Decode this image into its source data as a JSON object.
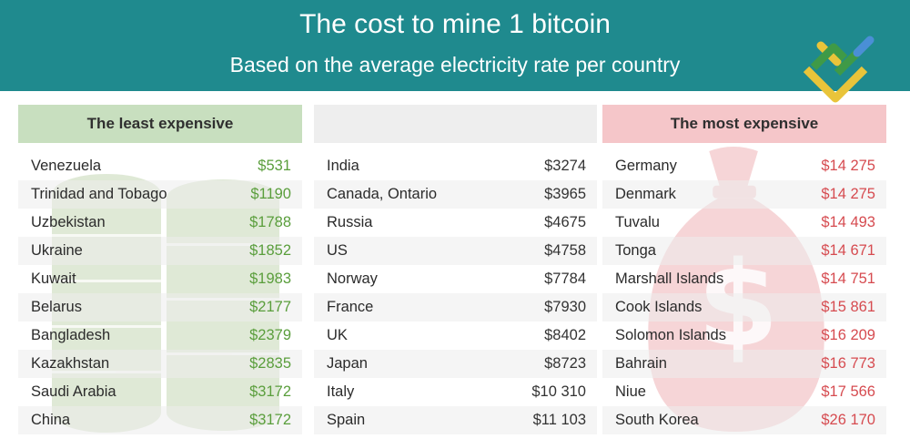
{
  "header": {
    "title": "The cost to mine 1 bitcoin",
    "subtitle": "Based on the average electricity rate per country"
  },
  "colors": {
    "banner": "#1f8a8e",
    "least": "#5a9e3c",
    "most": "#d64b50"
  },
  "chart_data": {
    "type": "table",
    "title": "The cost to mine 1 bitcoin",
    "subtitle": "Based on the average electricity rate per country",
    "columns": [
      {
        "heading": "The least expensive",
        "rows": [
          {
            "country": "Venezuela",
            "cost": "$531"
          },
          {
            "country": "Trinidad and Tobago",
            "cost": "$1190"
          },
          {
            "country": "Uzbekistan",
            "cost": "$1788"
          },
          {
            "country": "Ukraine",
            "cost": "$1852"
          },
          {
            "country": "Kuwait",
            "cost": "$1983"
          },
          {
            "country": "Belarus",
            "cost": "$2177"
          },
          {
            "country": "Bangladesh",
            "cost": "$2379"
          },
          {
            "country": "Kazakhstan",
            "cost": "$2835"
          },
          {
            "country": "Saudi Arabia",
            "cost": "$3172"
          },
          {
            "country": "China",
            "cost": "$3172"
          }
        ]
      },
      {
        "heading": "",
        "rows": [
          {
            "country": "India",
            "cost": "$3274"
          },
          {
            "country": "Canada, Ontario",
            "cost": "$3965"
          },
          {
            "country": "Russia",
            "cost": "$4675"
          },
          {
            "country": "US",
            "cost": "$4758"
          },
          {
            "country": "Norway",
            "cost": "$7784"
          },
          {
            "country": "France",
            "cost": "$7930"
          },
          {
            "country": "UK",
            "cost": "$8402"
          },
          {
            "country": "Japan",
            "cost": "$8723"
          },
          {
            "country": "Italy",
            "cost": "$10 310"
          },
          {
            "country": "Spain",
            "cost": "$11 103"
          }
        ]
      },
      {
        "heading": "The most expensive",
        "rows": [
          {
            "country": "Germany",
            "cost": "$14 275"
          },
          {
            "country": "Denmark",
            "cost": "$14 275"
          },
          {
            "country": "Tuvalu",
            "cost": "$14 493"
          },
          {
            "country": "Tonga",
            "cost": "$14 671"
          },
          {
            "country": "Marshall Islands",
            "cost": "$14 751"
          },
          {
            "country": "Cook Islands",
            "cost": "$15 861"
          },
          {
            "country": "Solomon Islands",
            "cost": "$16 209"
          },
          {
            "country": "Bahrain",
            "cost": "$16 773"
          },
          {
            "country": "Niue",
            "cost": "$17 566"
          },
          {
            "country": "South Korea",
            "cost": "$26 170"
          }
        ]
      }
    ]
  }
}
